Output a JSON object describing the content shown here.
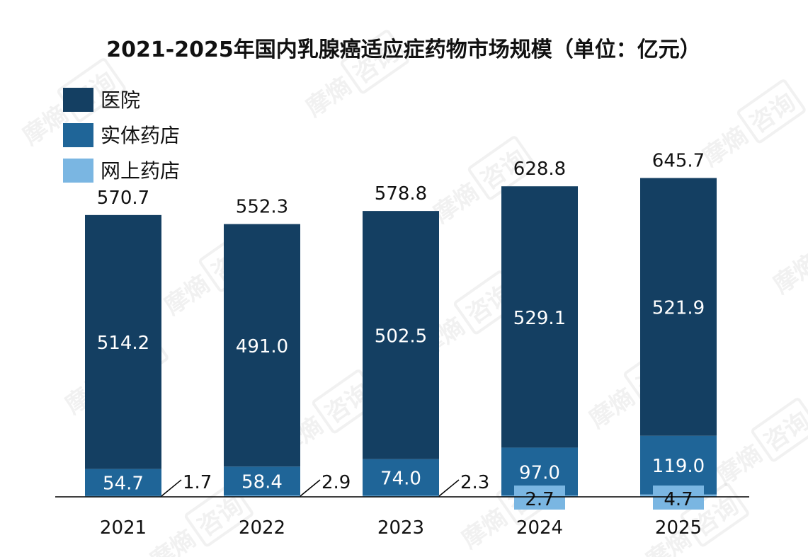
{
  "chart_data": {
    "type": "bar",
    "stacked": true,
    "title": "2021-2025年国内乳腺癌适应症药物市场规模（单位：亿元）",
    "categories": [
      "2021",
      "2022",
      "2023",
      "2024",
      "2025"
    ],
    "series": [
      {
        "name": "网上药店",
        "color": "#7ab6e2",
        "values": [
          1.7,
          2.9,
          2.3,
          2.7,
          4.7
        ],
        "labels": [
          "1.7",
          "2.9",
          "2.3",
          "2.7",
          "4.7"
        ]
      },
      {
        "name": "实体药店",
        "color": "#1f6598",
        "values": [
          54.7,
          58.4,
          74.0,
          97.0,
          119.0
        ],
        "labels": [
          "54.7",
          "58.4",
          "74.0",
          "97.0",
          "119.0"
        ]
      },
      {
        "name": "医院",
        "color": "#143f62",
        "values": [
          514.2,
          491.0,
          502.5,
          529.1,
          521.9
        ],
        "labels": [
          "514.2",
          "491.0",
          "502.5",
          "529.1",
          "521.9"
        ]
      }
    ],
    "totals": [
      "570.7",
      "552.3",
      "578.8",
      "628.8",
      "645.7"
    ],
    "legend": [
      {
        "name": "医院",
        "color": "#143f62"
      },
      {
        "name": "实体药店",
        "color": "#1f6598"
      },
      {
        "name": "网上药店",
        "color": "#7ab6e2"
      }
    ],
    "legend_position": "top-left",
    "grid": false,
    "ylim": [
      0,
      700
    ]
  },
  "watermark": {
    "text": "摩熵",
    "box_text": "咨询"
  }
}
